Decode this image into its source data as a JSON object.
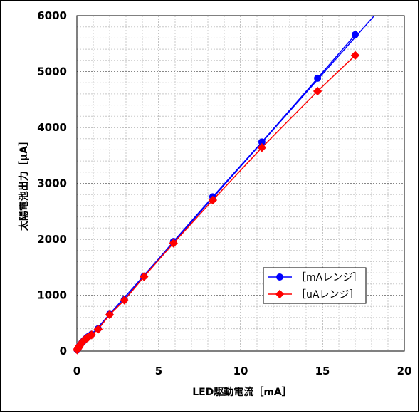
{
  "chart_data": {
    "type": "line",
    "xlabel": "LED駆動電流［mA］",
    "ylabel": "太陽電池出力［μA］",
    "xlim": [
      0,
      20
    ],
    "ylim": [
      0,
      6000
    ],
    "x_ticks": [
      0,
      5,
      10,
      15,
      20
    ],
    "y_ticks": [
      0,
      1000,
      2000,
      3000,
      4000,
      5000,
      6000
    ],
    "grid": "major and minor, dashed",
    "legend_position": "lower-right",
    "series": [
      {
        "name": "［mAレンジ］",
        "color": "#0000ff",
        "marker": "circle",
        "x": [
          0.02,
          0.05,
          0.1,
          0.15,
          0.2,
          0.3,
          0.4,
          0.5,
          0.6,
          0.7,
          0.9,
          1.3,
          2.0,
          2.9,
          4.1,
          5.9,
          8.3,
          11.3,
          14.7,
          17.0
        ],
        "y": [
          20,
          40,
          60,
          90,
          110,
          150,
          180,
          210,
          240,
          260,
          300,
          400,
          660,
          920,
          1340,
          1960,
          2760,
          3740,
          4880,
          5660
        ]
      },
      {
        "name": "［uAレンジ］",
        "color": "#ff0000",
        "marker": "diamond",
        "x": [
          0.02,
          0.05,
          0.1,
          0.15,
          0.2,
          0.3,
          0.4,
          0.5,
          0.6,
          0.7,
          0.9,
          1.3,
          2.0,
          2.9,
          4.1,
          5.9,
          8.3,
          11.3,
          14.7,
          17.0
        ],
        "y": [
          20,
          40,
          60,
          90,
          110,
          150,
          180,
          210,
          230,
          250,
          290,
          390,
          650,
          910,
          1330,
          1930,
          2700,
          3640,
          4650,
          5290
        ]
      }
    ],
    "trendline": {
      "color": "#0000ff",
      "x": [
        0,
        18.35
      ],
      "y": [
        0,
        6060
      ]
    }
  }
}
